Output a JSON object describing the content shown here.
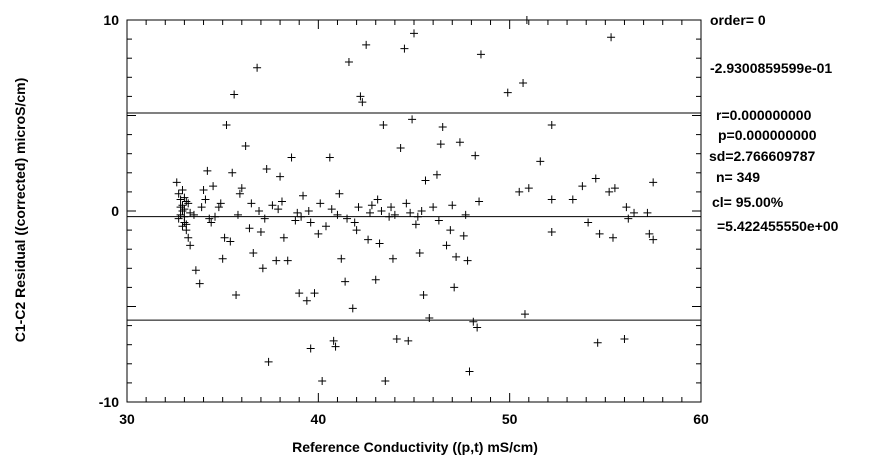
{
  "chart_data": {
    "type": "scatter",
    "title": "",
    "xlabel": "Reference Conductivity ((p,t) mS/cm)",
    "ylabel": "C1-C2 Residual ((corrected) microS/cm)",
    "xlim": [
      30,
      60
    ],
    "ylim": [
      -10,
      10
    ],
    "x_ticks": [
      30,
      40,
      50,
      60
    ],
    "x_tick_labels": [
      "30",
      "40",
      "50",
      "60"
    ],
    "y_ticks": [
      -10,
      0,
      10
    ],
    "y_tick_labels": [
      "-10",
      "0",
      "10"
    ],
    "grid": false,
    "marker": "+",
    "reference_lines": [
      {
        "y": 5.129
      },
      {
        "y": -0.293
      },
      {
        "y": -5.715
      }
    ],
    "stats": {
      "order": "order= 0",
      "mean": "-2.9300859599e-01",
      "r": "r=0.000000000",
      "p": "p=0.000000000",
      "sd": "sd=2.766609787",
      "n": "n= 349",
      "cl": "cl=  95.00%",
      "cl_value": "=5.422455550e+00"
    },
    "points": [
      [
        32.6,
        1.5
      ],
      [
        32.7,
        0.9
      ],
      [
        32.8,
        0.6
      ],
      [
        32.9,
        0.3
      ],
      [
        32.9,
        0.0
      ],
      [
        33.0,
        -0.3
      ],
      [
        33.0,
        -0.6
      ],
      [
        33.1,
        -1.0
      ],
      [
        32.8,
        -0.2
      ],
      [
        33.2,
        0.4
      ],
      [
        32.9,
        -0.8
      ],
      [
        33.0,
        0.1
      ],
      [
        32.7,
        -0.4
      ],
      [
        33.1,
        -0.7
      ],
      [
        33.2,
        -1.4
      ],
      [
        32.8,
        0.2
      ],
      [
        33.0,
        0.7
      ],
      [
        33.3,
        -0.1
      ],
      [
        32.9,
        1.1
      ],
      [
        33.1,
        0.5
      ],
      [
        33.3,
        -1.8
      ],
      [
        33.5,
        -0.2
      ],
      [
        33.6,
        -3.1
      ],
      [
        33.8,
        -3.8
      ],
      [
        33.9,
        0.2
      ],
      [
        34.0,
        1.1
      ],
      [
        34.1,
        0.6
      ],
      [
        34.2,
        2.1
      ],
      [
        34.3,
        -0.4
      ],
      [
        34.5,
        1.3
      ],
      [
        34.6,
        -0.3
      ],
      [
        34.8,
        0.2
      ],
      [
        35.0,
        -2.5
      ],
      [
        35.1,
        -1.4
      ],
      [
        35.2,
        4.5
      ],
      [
        35.4,
        -1.6
      ],
      [
        35.5,
        2.0
      ],
      [
        35.6,
        6.1
      ],
      [
        35.7,
        -4.4
      ],
      [
        35.9,
        0.9
      ],
      [
        36.0,
        1.2
      ],
      [
        36.2,
        3.4
      ],
      [
        36.4,
        -0.9
      ],
      [
        36.6,
        -2.2
      ],
      [
        36.8,
        7.5
      ],
      [
        37.0,
        -1.1
      ],
      [
        37.1,
        -3.0
      ],
      [
        37.3,
        2.2
      ],
      [
        37.4,
        -7.9
      ],
      [
        37.6,
        0.3
      ],
      [
        37.8,
        -2.6
      ],
      [
        38.0,
        1.8
      ],
      [
        38.2,
        -1.4
      ],
      [
        38.4,
        -2.6
      ],
      [
        38.6,
        2.8
      ],
      [
        38.8,
        -0.5
      ],
      [
        39.0,
        -4.3
      ],
      [
        39.2,
        0.8
      ],
      [
        39.4,
        -4.7
      ],
      [
        39.6,
        -0.6
      ],
      [
        39.6,
        -7.2
      ],
      [
        39.8,
        -4.3
      ],
      [
        40.0,
        -1.2
      ],
      [
        40.2,
        -8.9
      ],
      [
        40.4,
        -0.8
      ],
      [
        40.6,
        2.8
      ],
      [
        40.8,
        -6.8
      ],
      [
        40.9,
        -7.1
      ],
      [
        41.0,
        -0.2
      ],
      [
        41.2,
        -2.5
      ],
      [
        41.4,
        -3.7
      ],
      [
        41.6,
        7.8
      ],
      [
        41.8,
        -5.1
      ],
      [
        42.0,
        -1.0
      ],
      [
        42.2,
        6.0
      ],
      [
        42.3,
        5.7
      ],
      [
        42.5,
        8.7
      ],
      [
        42.6,
        -1.5
      ],
      [
        42.8,
        0.3
      ],
      [
        43.0,
        -3.6
      ],
      [
        43.2,
        -1.7
      ],
      [
        43.4,
        4.5
      ],
      [
        43.5,
        -8.9
      ],
      [
        43.7,
        -0.3
      ],
      [
        43.9,
        -2.5
      ],
      [
        44.1,
        -6.7
      ],
      [
        44.3,
        3.3
      ],
      [
        44.5,
        8.5
      ],
      [
        44.7,
        -6.8
      ],
      [
        44.9,
        4.8
      ],
      [
        45.0,
        9.3
      ],
      [
        45.1,
        -0.7
      ],
      [
        45.3,
        -2.2
      ],
      [
        45.5,
        -4.4
      ],
      [
        45.6,
        1.6
      ],
      [
        45.8,
        -5.6
      ],
      [
        46.0,
        0.2
      ],
      [
        46.2,
        1.9
      ],
      [
        46.4,
        3.5
      ],
      [
        46.5,
        4.4
      ],
      [
        46.7,
        -1.8
      ],
      [
        46.9,
        -1.0
      ],
      [
        47.1,
        -4.0
      ],
      [
        47.2,
        -2.4
      ],
      [
        47.4,
        3.6
      ],
      [
        47.6,
        -1.3
      ],
      [
        47.8,
        -2.6
      ],
      [
        47.9,
        -8.4
      ],
      [
        48.1,
        -5.8
      ],
      [
        48.2,
        2.9
      ],
      [
        48.3,
        -6.1
      ],
      [
        48.5,
        8.2
      ],
      [
        49.9,
        6.2
      ],
      [
        50.5,
        1.0
      ],
      [
        50.7,
        6.7
      ],
      [
        50.8,
        -5.4
      ],
      [
        50.9,
        10.0
      ],
      [
        51.0,
        1.2
      ],
      [
        51.6,
        2.6
      ],
      [
        52.2,
        4.5
      ],
      [
        52.2,
        0.6
      ],
      [
        52.2,
        -1.1
      ],
      [
        53.3,
        0.6
      ],
      [
        53.8,
        1.3
      ],
      [
        54.1,
        -0.6
      ],
      [
        54.5,
        1.7
      ],
      [
        54.6,
        -6.9
      ],
      [
        54.7,
        -1.2
      ],
      [
        55.2,
        1.0
      ],
      [
        55.3,
        9.1
      ],
      [
        55.4,
        -1.4
      ],
      [
        55.5,
        1.2
      ],
      [
        56.0,
        -6.7
      ],
      [
        56.1,
        0.2
      ],
      [
        56.2,
        -0.4
      ],
      [
        56.5,
        -0.1
      ],
      [
        57.2,
        -0.1
      ],
      [
        57.3,
        -1.2
      ],
      [
        57.5,
        1.5
      ],
      [
        57.5,
        -1.5
      ],
      [
        37.2,
        -0.4
      ],
      [
        38.9,
        -0.1
      ],
      [
        40.1,
        0.4
      ],
      [
        41.1,
        0.9
      ],
      [
        42.1,
        0.2
      ],
      [
        43.1,
        0.6
      ],
      [
        44.0,
        -0.2
      ],
      [
        44.6,
        0.4
      ],
      [
        45.4,
        0.0
      ],
      [
        46.3,
        -0.5
      ],
      [
        47.0,
        0.3
      ],
      [
        47.7,
        -0.2
      ],
      [
        48.4,
        0.5
      ],
      [
        36.5,
        0.4
      ],
      [
        37.9,
        0.1
      ],
      [
        39.5,
        0.0
      ],
      [
        41.5,
        -0.4
      ],
      [
        42.7,
        -0.1
      ],
      [
        43.8,
        0.2
      ],
      [
        45.2,
        -0.3
      ],
      [
        34.4,
        -0.6
      ],
      [
        34.9,
        0.4
      ],
      [
        35.8,
        -0.2
      ],
      [
        36.9,
        0.0
      ],
      [
        38.1,
        0.5
      ],
      [
        39.1,
        -0.3
      ],
      [
        40.7,
        0.1
      ],
      [
        41.9,
        -0.6
      ],
      [
        43.3,
        0.0
      ],
      [
        44.8,
        -0.1
      ]
    ]
  }
}
